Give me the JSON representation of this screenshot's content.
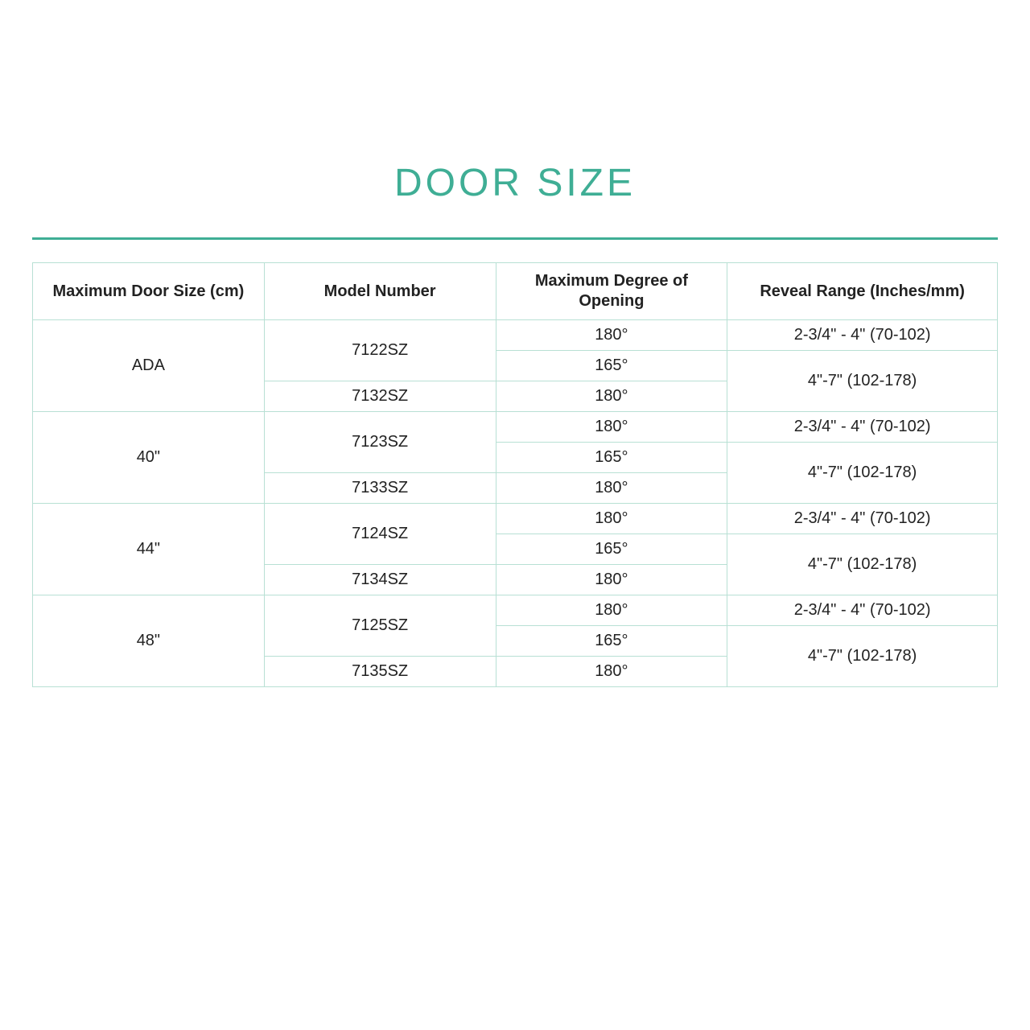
{
  "title": "DOOR SIZE",
  "colors": {
    "accent": "#3fae95",
    "border": "#b8e0d4",
    "background": "#ffffff",
    "text": "#222222"
  },
  "table": {
    "headers": {
      "size": "Maximum Door Size (cm)",
      "model": "Model Number",
      "degree": "Maximum Degree\nof Opening",
      "reveal": "Reveal Range (Inches/mm)"
    },
    "groups": [
      {
        "size": "ADA",
        "model_a": "7122SZ",
        "model_b": "7132SZ",
        "deg1": "180°",
        "deg2": "165°",
        "deg3": "180°",
        "rev1": "2-3/4\" - 4\" (70-102)",
        "rev2": "4\"-7\" (102-178)"
      },
      {
        "size": "40\"",
        "model_a": "7123SZ",
        "model_b": "7133SZ",
        "deg1": "180°",
        "deg2": "165°",
        "deg3": "180°",
        "rev1": "2-3/4\" - 4\" (70-102)",
        "rev2": "4\"-7\" (102-178)"
      },
      {
        "size": "44\"",
        "model_a": "7124SZ",
        "model_b": "7134SZ",
        "deg1": "180°",
        "deg2": "165°",
        "deg3": "180°",
        "rev1": "2-3/4\" - 4\" (70-102)",
        "rev2": "4\"-7\" (102-178)"
      },
      {
        "size": "48\"",
        "model_a": "7125SZ",
        "model_b": "7135SZ",
        "deg1": "180°",
        "deg2": "165°",
        "deg3": "180°",
        "rev1": "2-3/4\" - 4\" (70-102)",
        "rev2": "4\"-7\" (102-178)"
      }
    ]
  }
}
